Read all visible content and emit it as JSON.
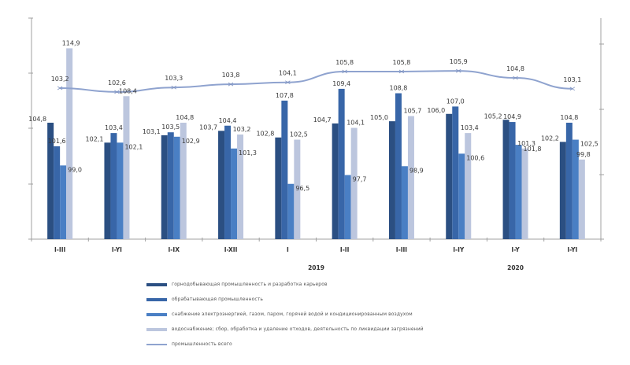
{
  "chart_data": {
    "type": "bar+line",
    "title": "",
    "categories": [
      "I-III",
      "I-YI",
      "I-IX",
      "I-XII",
      "I",
      "I-II",
      "I-III",
      "I-IY",
      "I-Y",
      "I-YI"
    ],
    "year_labels": [
      {
        "label": "2019",
        "under_category_index": 5
      },
      {
        "label": "2020",
        "under_category_index": 8.5
      }
    ],
    "series": [
      {
        "name": "горнодобывающая промышленность и разработка карьеров",
        "type": "bar",
        "color": "#2b4f82",
        "values": [
          104.8,
          102.1,
          103.1,
          103.7,
          102.8,
          104.7,
          105.0,
          106.0,
          105.2,
          102.2
        ]
      },
      {
        "name": "обрабатывающая промышленность",
        "type": "bar",
        "color": "#3866a8",
        "values": [
          101.6,
          103.4,
          103.5,
          104.4,
          107.8,
          109.4,
          108.8,
          107.0,
          104.9,
          104.8
        ]
      },
      {
        "name": "снабжение электроэнергией, газом, паром, горячей водой и кондиционированным воздухом",
        "type": "bar",
        "color": "#4a7fc4",
        "values": [
          99.0,
          102.1,
          102.9,
          101.3,
          96.5,
          97.7,
          98.9,
          100.6,
          101.8,
          102.5
        ]
      },
      {
        "name": "водоснабжение; сбор, обработка и удаление отходов, деятельность по ликвидации загрязнений",
        "type": "bar",
        "color": "#bcc6de",
        "values": [
          114.9,
          108.4,
          104.8,
          103.2,
          102.5,
          104.1,
          105.7,
          103.4,
          101.3,
          99.8
        ]
      },
      {
        "name": "промышленность всего",
        "type": "line",
        "color": "#8fa3cf",
        "axis": "secondary",
        "values": [
          103.2,
          102.6,
          103.3,
          103.8,
          104.1,
          105.8,
          105.8,
          105.9,
          104.8,
          103.1
        ]
      }
    ],
    "xlabel": "",
    "ylabel": "",
    "ylim": [
      89,
      119
    ],
    "y2lim": [
      95,
      108
    ],
    "grid": false,
    "legend_position": "bottom",
    "value_label_format": "decimal comma, 1 digit"
  },
  "legend": {
    "items": [
      {
        "label": "горнодобывающая промышленность и разработка карьеров",
        "color": "#2b4f82"
      },
      {
        "label": "обрабатывающая промышленность",
        "color": "#3866a8"
      },
      {
        "label": "снабжение электроэнергией, газом, паром, горячей водой и кондиционированным воздухом",
        "color": "#4a7fc4"
      },
      {
        "label": "водоснабжение; сбор, обработка и удаление отходов, деятельность по ликвидации загрязнений",
        "color": "#bcc6de"
      },
      {
        "label": "промышленность всего",
        "color": "#8fa3cf"
      }
    ]
  }
}
